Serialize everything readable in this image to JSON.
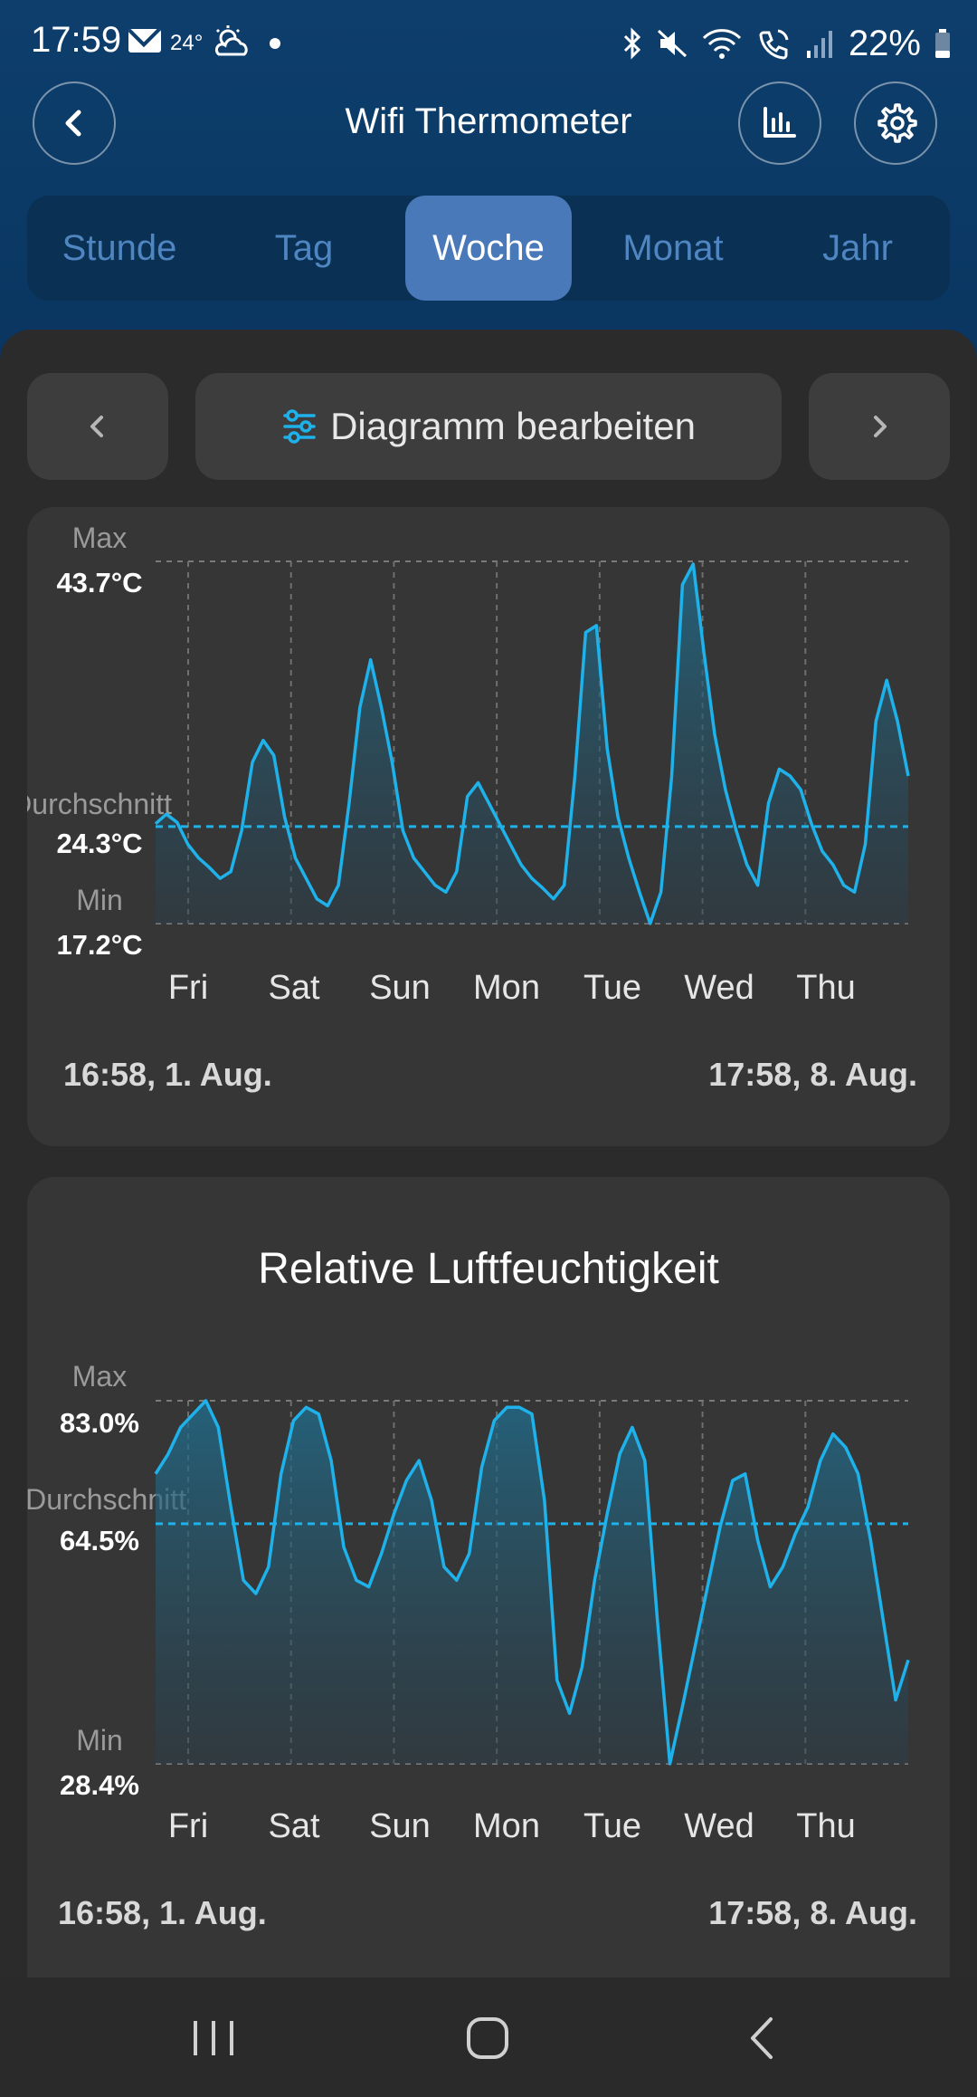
{
  "status_bar": {
    "time": "17:59",
    "weather_temp": "24°",
    "battery": "22%",
    "icons": [
      "mail-icon",
      "weather-icon",
      "bluetooth-icon",
      "mute-icon",
      "wifi-icon",
      "wifi-call-icon",
      "signal-icon",
      "battery-icon"
    ]
  },
  "app_bar": {
    "title": "Wifi Thermometer",
    "back_icon": "chevron-left-icon",
    "chart_icon": "bar-chart-icon",
    "settings_icon": "gear-icon"
  },
  "tabs": [
    {
      "label": "Stunde",
      "active": false
    },
    {
      "label": "Tag",
      "active": false
    },
    {
      "label": "Woche",
      "active": true
    },
    {
      "label": "Monat",
      "active": false
    },
    {
      "label": "Jahr",
      "active": false
    }
  ],
  "controls": {
    "edit_label": "Diagramm bearbeiten",
    "prev_icon": "chevron-left-icon",
    "next_icon": "chevron-right-icon",
    "edit_icon": "sliders-icon"
  },
  "accent_color": "#1fb2ea",
  "chart_data": [
    {
      "type": "area",
      "title": "",
      "ylim": [
        17.2,
        43.7
      ],
      "max_label": "Max",
      "max_value": "43.7°C",
      "avg_label": "Durchschnitt",
      "avg_value": "24.3°C",
      "min_label": "Min",
      "min_value": "17.2°C",
      "average": 24.3,
      "x_tick_labels": [
        "Fri",
        "Sat",
        "Sun",
        "Mon",
        "Tue",
        "Wed",
        "Thu"
      ],
      "range_start": "16:58,  1. Aug.",
      "range_end": "17:58,  8. Aug.",
      "series": [
        {
          "unit": "°C",
          "values": [
            24.5,
            25.2,
            24.6,
            23.0,
            22.0,
            21.3,
            20.5,
            21.0,
            24.0,
            29.0,
            30.6,
            29.5,
            25.0,
            22.0,
            20.5,
            19.0,
            18.5,
            20.0,
            26.0,
            33.0,
            36.5,
            33.0,
            29.0,
            24.0,
            22.0,
            21.0,
            20.0,
            19.5,
            21.0,
            26.5,
            27.5,
            26.0,
            24.5,
            23.0,
            21.5,
            20.5,
            19.8,
            19.0,
            20.0,
            28.0,
            38.5,
            39.0,
            30.0,
            25.0,
            22.0,
            19.5,
            17.2,
            19.5,
            28.0,
            42.0,
            43.5,
            37.0,
            31.0,
            27.0,
            24.0,
            21.5,
            20.0,
            26.0,
            28.5,
            28.0,
            27.0,
            24.5,
            22.5,
            21.5,
            20.0,
            19.5,
            23.0,
            32.0,
            35.0,
            32.0,
            28.0
          ]
        }
      ]
    },
    {
      "type": "area",
      "title": "Relative Luftfeuchtigkeit",
      "ylim": [
        28.4,
        83.0
      ],
      "max_label": "Max",
      "max_value": "83.0%",
      "avg_label": "Durchschnitt",
      "avg_value": "64.5%",
      "min_label": "Min",
      "min_value": "28.4%",
      "average": 64.5,
      "x_tick_labels": [
        "Fri",
        "Sat",
        "Sun",
        "Mon",
        "Tue",
        "Wed",
        "Thu"
      ],
      "range_start": "16:58,  1. Aug.",
      "range_end": "17:58,  8. Aug.",
      "series": [
        {
          "unit": "%",
          "values": [
            72.0,
            75.0,
            79.0,
            81.0,
            83.0,
            79.0,
            67.0,
            56.0,
            54.0,
            58.0,
            72.0,
            80.0,
            82.0,
            81.0,
            74.0,
            61.0,
            56.0,
            55.0,
            60.0,
            66.0,
            71.0,
            74.0,
            68.0,
            58.0,
            56.0,
            60.0,
            73.0,
            80.0,
            82.0,
            82.0,
            81.0,
            68.0,
            41.0,
            36.0,
            43.0,
            56.0,
            66.0,
            75.0,
            79.0,
            74.0,
            50.0,
            28.4,
            37.0,
            46.0,
            55.0,
            64.0,
            71.0,
            72.0,
            62.0,
            55.0,
            58.0,
            63.0,
            67.0,
            74.0,
            78.0,
            76.0,
            72.0,
            62.0,
            50.0,
            38.0,
            44.0
          ]
        }
      ]
    }
  ]
}
